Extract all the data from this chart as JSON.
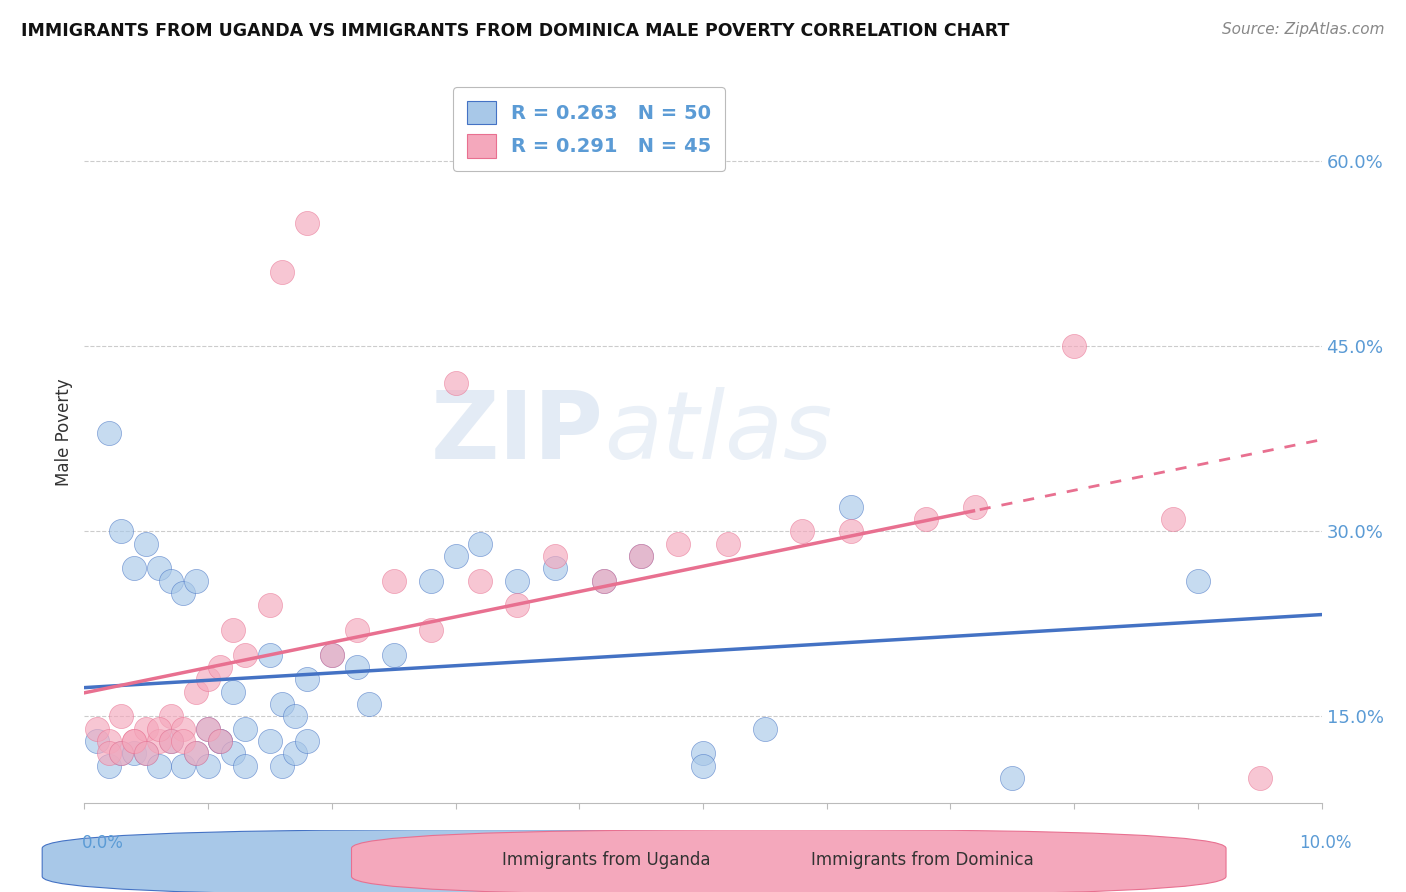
{
  "title": "IMMIGRANTS FROM UGANDA VS IMMIGRANTS FROM DOMINICA MALE POVERTY CORRELATION CHART",
  "source": "Source: ZipAtlas.com",
  "ylabel": "Male Poverty",
  "yticks_labels": [
    "15.0%",
    "30.0%",
    "45.0%",
    "60.0%"
  ],
  "ytick_vals": [
    0.15,
    0.3,
    0.45,
    0.6
  ],
  "xlim": [
    0.0,
    0.1
  ],
  "ylim": [
    0.08,
    0.68
  ],
  "uganda_color": "#A8C8E8",
  "dominica_color": "#F4A8BC",
  "uganda_line_color": "#4472C4",
  "dominica_line_color": "#E87090",
  "uganda_R": 0.263,
  "uganda_N": 50,
  "dominica_R": 0.291,
  "dominica_N": 45,
  "uganda_x": [
    0.002,
    0.003,
    0.004,
    0.005,
    0.006,
    0.007,
    0.008,
    0.009,
    0.01,
    0.011,
    0.012,
    0.013,
    0.015,
    0.016,
    0.017,
    0.018,
    0.02,
    0.022,
    0.023,
    0.025,
    0.028,
    0.03,
    0.032,
    0.035,
    0.038,
    0.042,
    0.045,
    0.05,
    0.055,
    0.062,
    0.075,
    0.09,
    0.001,
    0.002,
    0.003,
    0.004,
    0.005,
    0.006,
    0.007,
    0.008,
    0.009,
    0.01,
    0.011,
    0.012,
    0.013,
    0.015,
    0.016,
    0.017,
    0.018,
    0.05
  ],
  "uganda_y": [
    0.38,
    0.3,
    0.27,
    0.29,
    0.27,
    0.26,
    0.25,
    0.26,
    0.14,
    0.13,
    0.17,
    0.14,
    0.2,
    0.16,
    0.15,
    0.18,
    0.2,
    0.19,
    0.16,
    0.2,
    0.26,
    0.28,
    0.29,
    0.26,
    0.27,
    0.26,
    0.28,
    0.12,
    0.14,
    0.32,
    0.1,
    0.26,
    0.13,
    0.11,
    0.12,
    0.12,
    0.12,
    0.11,
    0.13,
    0.11,
    0.12,
    0.11,
    0.13,
    0.12,
    0.11,
    0.13,
    0.11,
    0.12,
    0.13,
    0.11
  ],
  "dominica_x": [
    0.001,
    0.002,
    0.003,
    0.004,
    0.005,
    0.006,
    0.007,
    0.008,
    0.009,
    0.01,
    0.011,
    0.012,
    0.013,
    0.015,
    0.016,
    0.018,
    0.02,
    0.022,
    0.025,
    0.028,
    0.03,
    0.032,
    0.035,
    0.038,
    0.042,
    0.045,
    0.048,
    0.052,
    0.058,
    0.062,
    0.068,
    0.072,
    0.08,
    0.088,
    0.095,
    0.002,
    0.003,
    0.004,
    0.005,
    0.006,
    0.007,
    0.008,
    0.009,
    0.01,
    0.011
  ],
  "dominica_y": [
    0.14,
    0.13,
    0.15,
    0.13,
    0.14,
    0.13,
    0.15,
    0.14,
    0.17,
    0.18,
    0.19,
    0.22,
    0.2,
    0.24,
    0.51,
    0.55,
    0.2,
    0.22,
    0.26,
    0.22,
    0.42,
    0.26,
    0.24,
    0.28,
    0.26,
    0.28,
    0.29,
    0.29,
    0.3,
    0.3,
    0.31,
    0.32,
    0.45,
    0.31,
    0.1,
    0.12,
    0.12,
    0.13,
    0.12,
    0.14,
    0.13,
    0.13,
    0.12,
    0.14,
    0.13
  ],
  "watermark_zip": "ZIP",
  "watermark_atlas": "atlas"
}
